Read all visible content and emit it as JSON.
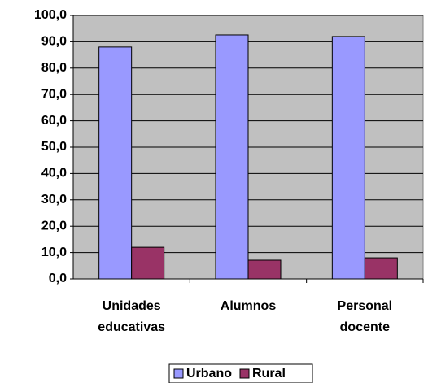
{
  "chart_data": {
    "type": "bar",
    "categories": [
      "Unidades educativas",
      "Alumnos",
      "Personal docente"
    ],
    "series": [
      {
        "name": "Urbano",
        "color": "#9999ff",
        "values": [
          88.0,
          92.6,
          92.0
        ]
      },
      {
        "name": "Rural",
        "color": "#993366",
        "values": [
          12.0,
          7.1,
          8.0
        ]
      }
    ],
    "ylim": [
      0,
      100
    ],
    "yticks": [
      {
        "value": 0,
        "label": "0,0"
      },
      {
        "value": 10,
        "label": "10,0"
      },
      {
        "value": 20,
        "label": "20,0"
      },
      {
        "value": 30,
        "label": "30,0"
      },
      {
        "value": 40,
        "label": "40,0"
      },
      {
        "value": 50,
        "label": "50,0"
      },
      {
        "value": 60,
        "label": "60,0"
      },
      {
        "value": 70,
        "label": "70,0"
      },
      {
        "value": 80,
        "label": "80,0"
      },
      {
        "value": 90,
        "label": "90,0"
      },
      {
        "value": 100,
        "label": "100,0"
      }
    ],
    "grid": true,
    "legend": "bottom"
  }
}
